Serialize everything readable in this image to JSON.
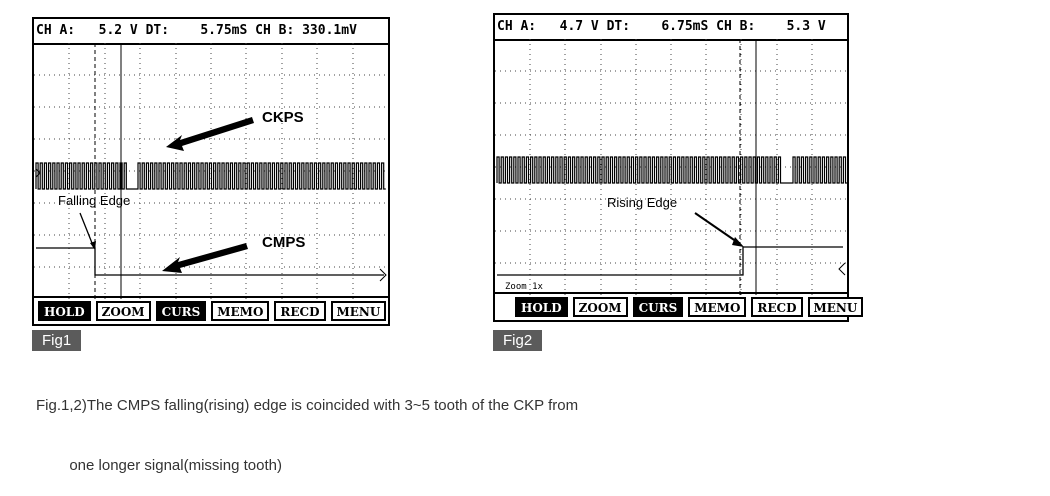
{
  "fig1": {
    "header": "CH A:   5.2 V DT:    5.75mS CH B: 330.1mV",
    "labels": {
      "ckps": "CKPS",
      "cmps": "CMPS",
      "edge": "Falling Edge"
    },
    "tag": "Fig1"
  },
  "fig2": {
    "header": "CH A:   4.7 V DT:    6.75mS CH B:    5.3 V",
    "labels": {
      "edge": "Rising Edge",
      "zoom": "Zoom 1x"
    },
    "tag": "Fig2"
  },
  "buttons": [
    {
      "label": "HOLD",
      "active": true
    },
    {
      "label": "ZOOM",
      "active": false
    },
    {
      "label": "CURS",
      "active": true
    },
    {
      "label": "MEMO",
      "active": false
    },
    {
      "label": "RECD",
      "active": false
    },
    {
      "label": "MENU",
      "active": false
    }
  ],
  "caption": {
    "line1": "Fig.1,2)The CMPS falling(rising) edge is coincided with 3~5 tooth of the CKP from",
    "line2": "        one longer signal(missing tooth)"
  }
}
